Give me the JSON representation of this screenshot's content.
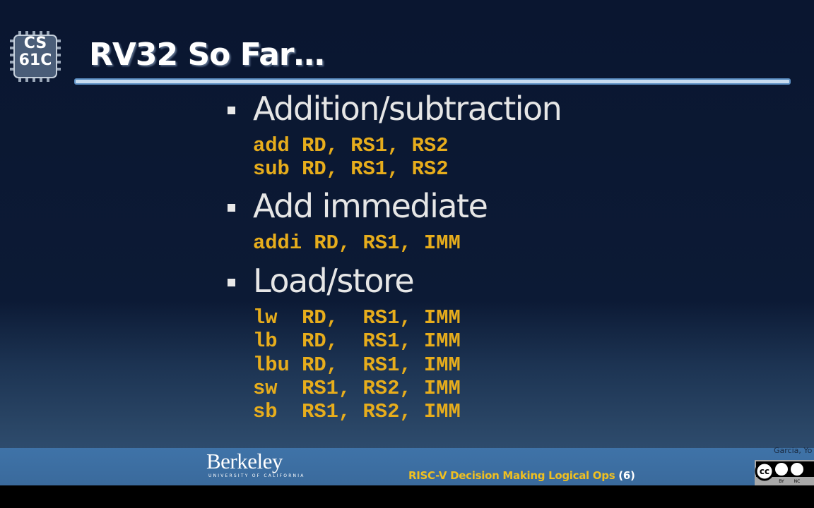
{
  "logo": {
    "line1": "CS",
    "line2": "61C"
  },
  "title": "RV32 So Far…",
  "sections": [
    {
      "heading": "Addition/subtraction",
      "code": [
        "add RD, RS1, RS2",
        "sub RD, RS1, RS2"
      ]
    },
    {
      "heading": "Add immediate",
      "code": [
        "addi RD, RS1, IMM"
      ]
    },
    {
      "heading": "Load/store",
      "code": [
        "lw  RD,  RS1, IMM",
        "lb  RD,  RS1, IMM",
        "lbu RD,  RS1, IMM",
        "sw  RS1, RS2, IMM",
        "sb  RS1, RS2, IMM"
      ]
    }
  ],
  "footer": {
    "institution": "Berkeley",
    "subtitle": "UNIVERSITY OF CALIFORNIA",
    "topic": "RISC-V Decision Making Logical Ops",
    "page": "(6)",
    "author": "Garcia, Yo",
    "license": [
      "BY",
      "NC"
    ]
  }
}
